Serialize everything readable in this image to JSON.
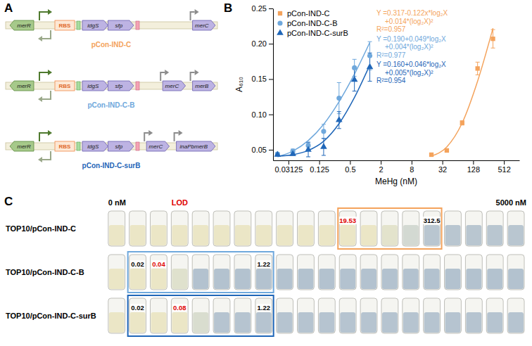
{
  "panel_a": {
    "letter": "A",
    "regulator": "merR",
    "rbs": "RBS",
    "operon": [
      "idgS",
      "sfp"
    ],
    "constructs": [
      {
        "name": "pCon-IND-C",
        "color": "#f4a35c",
        "downstream": [
          "merC"
        ]
      },
      {
        "name": "pCon-IND-C-B",
        "color": "#6fa8dc",
        "downstream": [
          "merC",
          "merB"
        ]
      },
      {
        "name": "pCon-IND-C-surB",
        "color": "#1f66b8",
        "downstream": [
          "merC",
          "inaPbmerB"
        ]
      }
    ]
  },
  "panel_b": {
    "letter": "B"
  },
  "chart_data": {
    "type": "scatter",
    "x_label": "MeHg (nM)",
    "y_label": "A₆₁₀",
    "log": "x",
    "legend": "top-left",
    "xlim": [
      0.015625,
      1024
    ],
    "xticks": [
      0.03125,
      0.125,
      0.5,
      2,
      8,
      32,
      128,
      512
    ],
    "ylim": [
      0.035,
      0.25
    ],
    "yticks": [
      0.05,
      {
        "value": 0.1,
        "label": "0.10"
      },
      0.15,
      {
        "value": 0.2,
        "label": "0.20"
      },
      0.25
    ],
    "series": [
      {
        "name": "pCon-IND-C",
        "color": "#f4a35c",
        "marker": "square",
        "x": [
          19.53,
          39.06,
          78.13,
          156.25,
          312.5
        ],
        "values": [
          0.043,
          0.049,
          0.088,
          0.165,
          0.207
        ],
        "errors": [
          0.002,
          0.002,
          0.003,
          0.009,
          0.013
        ],
        "fit_values": [
          0.041,
          0.054,
          0.088,
          0.147,
          0.222
        ],
        "equation": [
          "Y =0.317-0.122x*log₂X",
          "+0.014*(log₂X)²",
          "R²=0.957"
        ]
      },
      {
        "name": "pCon-IND-C-B",
        "color": "#6fa8dc",
        "marker": "circle",
        "x": [
          0.0191,
          0.0381,
          0.0763,
          0.1526,
          0.3052,
          0.6104,
          1.2207
        ],
        "values": [
          0.044,
          0.048,
          0.056,
          0.076,
          0.123,
          0.166,
          0.183
        ],
        "errors": [
          0.002,
          0.003,
          0.005,
          0.01,
          0.022,
          0.012,
          0.02
        ],
        "fit_values": [
          0.04,
          0.048,
          0.063,
          0.086,
          0.118,
          0.157,
          0.202
        ],
        "equation": [
          "Y =0.190+0.049*log₂X",
          "+0.004*(log₂X)²",
          "R²=0.977"
        ]
      },
      {
        "name": "pCon-IND-C-surB",
        "color": "#1f66b8",
        "marker": "triangle",
        "x": [
          0.0191,
          0.0381,
          0.0763,
          0.1526,
          0.3052,
          0.6104,
          1.2207
        ],
        "values": [
          0.043,
          0.044,
          0.05,
          0.054,
          0.092,
          0.149,
          0.167
        ],
        "errors": [
          0.002,
          0.002,
          0.01,
          0.012,
          0.012,
          0.016,
          0.02
        ],
        "fit_values": [
          0.041,
          0.043,
          0.049,
          0.062,
          0.087,
          0.124,
          0.17
        ],
        "equation": [
          "Y =0.160+0.046*log₂X",
          "+0.005*(log₂X)²",
          "R²=0.954"
        ]
      }
    ]
  },
  "panel_c": {
    "letter": "C",
    "header": {
      "left": "0 nM",
      "lod": "LOD",
      "right": "5000 nM"
    },
    "rows": [
      {
        "label": "TOP10/pCon-IND-C",
        "box_color": "#f4a35c",
        "colors": [
          "#ebe6c6",
          "#ebe6c6",
          "#ebe6c6",
          "#ebe6c6",
          "#ebe6c6",
          "#ebe6c6",
          "#ebe6c6",
          "#ebe6c6",
          "#ebe6c6",
          "#ebe6c6",
          "#ebe6c6",
          "#ebe6c6",
          "#ebe6c6",
          "#e3e3cc",
          "#d3d9d2",
          "#b9c6d0",
          "#b9c6d0",
          "#b9c6d0",
          "#b9c6d0",
          "#b9c6d0"
        ],
        "tube_labels": [
          null,
          null,
          null,
          null,
          null,
          null,
          null,
          null,
          null,
          null,
          null,
          {
            "text": "19.53",
            "color": "#e00000"
          },
          null,
          null,
          null,
          {
            "text": "312.5",
            "color": "#000000"
          },
          null,
          null,
          null,
          null
        ]
      },
      {
        "label": "TOP10/pCon-IND-C-B",
        "box_color": "#6fa8dc",
        "colors": [
          "#ebe6c6",
          "#ebe6c6",
          "#ebe6c6",
          "#dfe1cd",
          "#b3c2cf",
          "#b3c2cf",
          "#b3c2cf",
          "#b3c2cf",
          "#b3c2cf",
          "#b3c2cf",
          "#b3c2cf",
          "#b3c2cf",
          "#b3c2cf",
          "#b3c2cf",
          "#b3c2cf",
          "#b3c2cf",
          "#b3c2cf",
          "#b3c2cf",
          "#b3c2cf",
          "#b3c2cf"
        ],
        "tube_labels": [
          null,
          {
            "text": "0.02",
            "color": "#000000"
          },
          {
            "text": "0.04",
            "color": "#e00000"
          },
          null,
          null,
          null,
          null,
          {
            "text": "1.22",
            "color": "#000000"
          },
          null,
          null,
          null,
          null,
          null,
          null,
          null,
          null,
          null,
          null,
          null,
          null
        ]
      },
      {
        "label": "TOP10/pCon-IND-C-surB",
        "box_color": "#1f66b8",
        "colors": [
          "#ebe6c6",
          "#ebe6c6",
          "#ebe6c6",
          "#ebe6c6",
          "#d9ddcf",
          "#b6c4d0",
          "#b6c4d0",
          "#b6c4d0",
          "#b6c4d0",
          "#b6c4d0",
          "#b6c4d0",
          "#b6c4d0",
          "#b6c4d0",
          "#b6c4d0",
          "#b6c4d0",
          "#b6c4d0",
          "#b6c4d0",
          "#b6c4d0",
          "#b6c4d0",
          "#b6c4d0"
        ],
        "tube_labels": [
          null,
          {
            "text": "0.02",
            "color": "#000000"
          },
          null,
          {
            "text": "0.08",
            "color": "#e00000"
          },
          null,
          null,
          null,
          {
            "text": "1.22",
            "color": "#000000"
          },
          null,
          null,
          null,
          null,
          null,
          null,
          null,
          null,
          null,
          null,
          null,
          null
        ]
      }
    ]
  }
}
